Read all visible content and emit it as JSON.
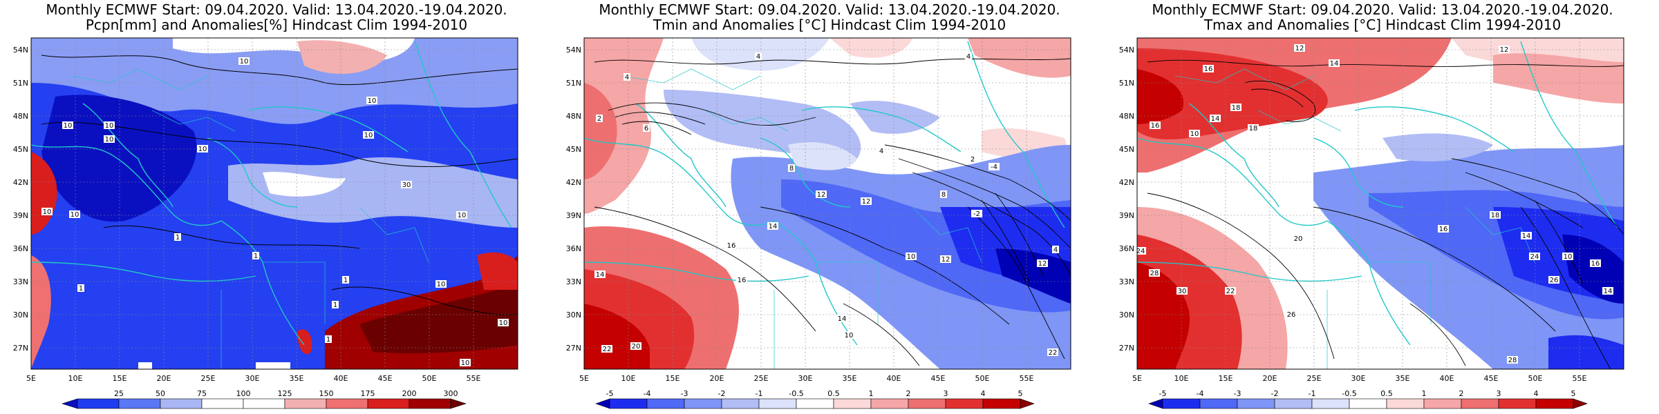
{
  "panels": [
    {
      "title_line1": "Monthly ECMWF Start: 09.04.2020. Valid: 13.04.2020.-19.04.2020.",
      "title_line2": "Pcpn[mm] and Anomalies[%] Hindcast Clim 1994-2010",
      "colorbar_labels": [
        "25",
        "50",
        "75",
        "100",
        "125",
        "150",
        "175",
        "200",
        "300"
      ],
      "colorbar_colors": [
        "#0a10c0",
        "#1f3cf0",
        "#5a78f4",
        "#a9b6f4",
        "#ffffff",
        "#f3b0b0",
        "#ef7070",
        "#d91e1e",
        "#a00000",
        "#6a0000"
      ],
      "contour_labels": [
        "10",
        "10",
        "10",
        "10",
        "10",
        "10",
        "10",
        "10",
        "1",
        "1",
        "1",
        "1",
        "30",
        "10",
        "10",
        "10",
        "10",
        "1",
        "1",
        "10"
      ]
    },
    {
      "title_line1": "Monthly ECMWF Start: 09.04.2020. Valid: 13.04.2020.-19.04.2020.",
      "title_line2": "Tmin and Anomalies [°C] Hindcast Clim 1994-2010",
      "colorbar_labels": [
        "-5",
        "-4",
        "-3",
        "-2",
        "-1",
        "-0.5",
        "0.5",
        "1",
        "2",
        "3",
        "4",
        "5"
      ],
      "colorbar_colors": [
        "#0000b4",
        "#1e2cf0",
        "#4f68f6",
        "#7f96f6",
        "#b2bdf5",
        "#dde2fb",
        "#ffffff",
        "#fbd9d9",
        "#f5a6a6",
        "#ee6f6f",
        "#e23030",
        "#c40000",
        "#8c0000"
      ],
      "contour_labels": [
        "4",
        "4",
        "4",
        "2",
        "6",
        "4",
        "8",
        "12",
        "14",
        "16",
        "12",
        "10",
        "2",
        "-2",
        "-4",
        "8",
        "12",
        "14",
        "10",
        "22",
        "20",
        "14",
        "16",
        "22",
        "12",
        "4"
      ]
    },
    {
      "title_line1": "Monthly ECMWF Start: 09.04.2020. Valid: 13.04.2020.-19.04.2020.",
      "title_line2": "Tmax and Anomalies [°C] Hindcast Clim 1994-2010",
      "colorbar_labels": [
        "-5",
        "-4",
        "-3",
        "-2",
        "-1",
        "-0.5",
        "0.5",
        "1",
        "2",
        "3",
        "4",
        "5"
      ],
      "colorbar_colors": [
        "#0000b4",
        "#1e2cf0",
        "#4f68f6",
        "#7f96f6",
        "#b2bdf5",
        "#dde2fb",
        "#ffffff",
        "#fbd9d9",
        "#f5a6a6",
        "#ee6f6f",
        "#e23030",
        "#c40000",
        "#8c0000"
      ],
      "contour_labels": [
        "12",
        "14",
        "16",
        "18",
        "14",
        "16",
        "12",
        "10",
        "18",
        "20",
        "24",
        "28",
        "30",
        "22",
        "26",
        "18",
        "16",
        "14",
        "10",
        "24",
        "26",
        "28",
        "16",
        "14"
      ]
    }
  ],
  "lat_labels": [
    "54N",
    "51N",
    "48N",
    "45N",
    "42N",
    "39N",
    "36N",
    "33N",
    "30N",
    "27N"
  ],
  "lon_labels": [
    "5E",
    "10E",
    "15E",
    "20E",
    "25E",
    "30E",
    "35E",
    "40E",
    "45E",
    "50E",
    "55E"
  ]
}
